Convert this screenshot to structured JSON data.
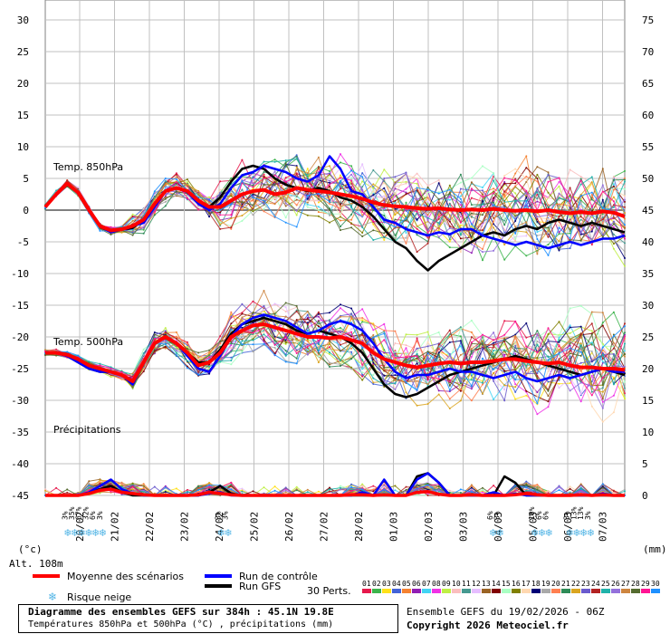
{
  "chart_data": {
    "type": "line",
    "title": "Diagramme des ensembles GEFS sur 384h : 45.1N 19.8E",
    "subtitle": "Températures 850hPa et 500hPa (°C) , précipitations (mm)",
    "run_info": "Ensemble GEFS du 19/02/2026 - 06Z",
    "copyright": "Copyright 2026 Meteociel.fr",
    "altitude_label": "Alt. 108m",
    "left_axis_unit": "(°c)",
    "right_axis_unit": "(mm)",
    "left_ticks": [
      "30",
      "25",
      "20",
      "15",
      "10",
      "5",
      "0",
      "-5",
      "-10",
      "-15",
      "-20",
      "-25",
      "-30",
      "-35",
      "-40",
      "-45"
    ],
    "right_ticks": [
      "75",
      "70",
      "65",
      "60",
      "55",
      "50",
      "45",
      "40",
      "35",
      "30",
      "25",
      "20",
      "15",
      "10",
      "5",
      "0"
    ],
    "x_ticks": [
      "20/02",
      "21/02",
      "22/02",
      "23/02",
      "24/02",
      "25/02",
      "26/02",
      "27/02",
      "28/02",
      "01/03",
      "02/03",
      "03/03",
      "04/03",
      "05/03",
      "06/03",
      "07/03"
    ],
    "section_labels": {
      "t850": "Temp. 850hPa",
      "t500": "Temp. 500hPa",
      "precip": "Précipitations"
    },
    "legend": {
      "mean": "Moyenne des scénarios",
      "control": "Run de contrôle",
      "gfs": "Run GFS",
      "snow": "Risque neige",
      "perts_label": "30 Perts.",
      "perts": [
        "01",
        "02",
        "03",
        "04",
        "05",
        "06",
        "07",
        "08",
        "09",
        "10",
        "11",
        "12",
        "13",
        "14",
        "15",
        "16",
        "17",
        "18",
        "19",
        "20",
        "21",
        "22",
        "23",
        "24",
        "25",
        "26",
        "27",
        "28",
        "29",
        "30"
      ]
    },
    "colors": {
      "mean": "#ff0000",
      "control": "#0000ff",
      "gfs": "#000000",
      "grid": "#c0c0c0",
      "zero_line": "#808080",
      "snow": "#55b6e6",
      "perts": [
        "#e6194b",
        "#3cb44b",
        "#ffe119",
        "#4363d8",
        "#f58231",
        "#911eb4",
        "#42d4f4",
        "#f032e6",
        "#bfef45",
        "#fabebe",
        "#469990",
        "#e6beff",
        "#9a6324",
        "#800000",
        "#aaffc3",
        "#808000",
        "#ffd8b1",
        "#000075",
        "#a9a9a9",
        "#ff7f50",
        "#2e8b57",
        "#daa520",
        "#6a5acd",
        "#b22222",
        "#20b2aa",
        "#9370db",
        "#cd853f",
        "#556b2f",
        "#ff1493",
        "#1e90ff"
      ]
    },
    "snow_risk": [
      {
        "day": 0.63,
        "text": "3%"
      },
      {
        "day": 0.83,
        "text": "35%"
      },
      {
        "day": 1.03,
        "text": "67%"
      },
      {
        "day": 1.23,
        "text": "32%"
      },
      {
        "day": 1.43,
        "text": "6%"
      },
      {
        "day": 1.63,
        "text": "3%"
      },
      {
        "day": 5.03,
        "text": "3%"
      },
      {
        "day": 5.23,
        "text": "3%"
      },
      {
        "day": 12.83,
        "text": "6%"
      },
      {
        "day": 13.03,
        "text": "3%"
      },
      {
        "day": 14.03,
        "text": "10%"
      },
      {
        "day": 14.23,
        "text": "6%"
      },
      {
        "day": 14.43,
        "text": "6%"
      },
      {
        "day": 15.03,
        "text": "3%"
      },
      {
        "day": 15.23,
        "text": "13%"
      },
      {
        "day": 15.43,
        "text": "13%"
      },
      {
        "day": 15.63,
        "text": "3%"
      }
    ],
    "series": {
      "mean_t850": [
        0.5,
        2.5,
        4.2,
        2.8,
        0.0,
        -2.5,
        -3.2,
        -3.0,
        -2.5,
        -1.5,
        1.0,
        3.0,
        3.5,
        3.0,
        1.5,
        0.5,
        0.5,
        1.5,
        2.5,
        3.0,
        3.2,
        2.5,
        2.8,
        3.5,
        3.2,
        3.0,
        2.8,
        2.5,
        2.2,
        1.8,
        1.2,
        0.8,
        0.6,
        0.5,
        0.3,
        0.2,
        0.3,
        0.1,
        0.0,
        0.1,
        0.0,
        0.2,
        0.0,
        -0.1,
        0.0,
        -0.2,
        0.0,
        -0.3,
        -0.5,
        -0.3,
        -0.5,
        -0.2,
        -0.4,
        -1.0
      ],
      "mean_t500": [
        -22.5,
        -22.5,
        -22.8,
        -23.5,
        -24.5,
        -25.0,
        -25.5,
        -26.0,
        -27.0,
        -24.0,
        -21.0,
        -20.0,
        -21.0,
        -22.5,
        -24.5,
        -24.0,
        -22.5,
        -20.0,
        -19.0,
        -18.2,
        -18.0,
        -18.5,
        -19.0,
        -19.5,
        -20.0,
        -20.0,
        -20.2,
        -20.0,
        -20.5,
        -21.0,
        -22.5,
        -23.5,
        -24.0,
        -24.5,
        -24.8,
        -24.5,
        -24.2,
        -24.0,
        -24.2,
        -24.0,
        -24.0,
        -23.8,
        -23.5,
        -23.5,
        -23.8,
        -24.0,
        -24.2,
        -24.0,
        -24.5,
        -24.8,
        -24.8,
        -25.0,
        -25.0,
        -25.2
      ],
      "control_t850": [
        0.5,
        2.5,
        4.2,
        2.8,
        0.0,
        -2.5,
        -3.5,
        -3.0,
        -2.5,
        -2.0,
        0.5,
        3.0,
        3.5,
        2.8,
        1.0,
        0.0,
        1.0,
        3.5,
        5.5,
        6.0,
        7.0,
        6.5,
        6.0,
        5.0,
        4.5,
        5.5,
        8.5,
        6.5,
        3.0,
        2.5,
        0.5,
        -1.5,
        -2.0,
        -3.0,
        -3.5,
        -4.0,
        -3.5,
        -3.8,
        -3.0,
        -3.0,
        -4.0,
        -4.5,
        -5.0,
        -5.5,
        -5.0,
        -5.5,
        -6.0,
        -5.5,
        -5.0,
        -5.5,
        -5.0,
        -4.5,
        -4.5,
        -4.0
      ],
      "gfs_t850": [
        0.5,
        2.5,
        4.2,
        2.8,
        0.0,
        -2.5,
        -3.5,
        -3.0,
        -2.8,
        -1.5,
        1.0,
        3.0,
        3.5,
        3.0,
        1.5,
        0.5,
        2.0,
        4.5,
        6.5,
        7.0,
        6.5,
        5.0,
        4.0,
        3.5,
        3.0,
        3.5,
        3.0,
        2.0,
        1.5,
        0.5,
        -1.0,
        -3.0,
        -5.0,
        -6.0,
        -8.0,
        -9.5,
        -8.0,
        -7.0,
        -6.0,
        -5.0,
        -4.0,
        -3.5,
        -4.0,
        -3.0,
        -2.5,
        -3.0,
        -2.0,
        -1.5,
        -2.0,
        -2.5,
        -2.0,
        -2.5,
        -3.0,
        -3.5
      ],
      "control_t500": [
        -22.5,
        -22.5,
        -23.0,
        -24.0,
        -25.0,
        -25.5,
        -25.5,
        -26.0,
        -27.5,
        -24.0,
        -21.0,
        -20.0,
        -21.0,
        -23.0,
        -25.0,
        -25.5,
        -23.0,
        -20.0,
        -18.0,
        -17.0,
        -16.5,
        -17.0,
        -17.5,
        -18.5,
        -19.5,
        -19.0,
        -18.0,
        -17.5,
        -18.0,
        -19.0,
        -21.0,
        -23.5,
        -25.5,
        -26.5,
        -26.0,
        -26.0,
        -25.5,
        -25.0,
        -25.5,
        -25.5,
        -26.0,
        -26.5,
        -26.0,
        -25.5,
        -26.5,
        -27.0,
        -26.5,
        -26.0,
        -26.5,
        -26.0,
        -25.5,
        -25.0,
        -25.5,
        -25.5
      ],
      "gfs_t500": [
        -22.5,
        -22.5,
        -23.0,
        -24.0,
        -25.0,
        -25.5,
        -25.5,
        -26.0,
        -27.0,
        -24.0,
        -21.0,
        -20.0,
        -21.0,
        -22.5,
        -24.0,
        -24.0,
        -22.0,
        -19.5,
        -18.0,
        -17.5,
        -17.0,
        -17.5,
        -18.0,
        -19.0,
        -19.5,
        -19.0,
        -19.5,
        -20.0,
        -21.0,
        -22.5,
        -25.0,
        -27.5,
        -29.0,
        -29.5,
        -29.0,
        -28.0,
        -27.0,
        -26.0,
        -25.5,
        -25.0,
        -24.5,
        -24.0,
        -23.5,
        -23.0,
        -23.5,
        -24.0,
        -24.5,
        -25.0,
        -25.5,
        -26.0,
        -25.5,
        -25.0,
        -25.5,
        -26.0
      ],
      "mean_precip": [
        0,
        0,
        0,
        0,
        0.3,
        0.8,
        1.0,
        0.5,
        0.3,
        0.1,
        0,
        0,
        0,
        0,
        0.1,
        0.5,
        0.3,
        0.1,
        0,
        0,
        0,
        0,
        0,
        0,
        0,
        0,
        0,
        0,
        0.1,
        0.1,
        0,
        0.1,
        0,
        0,
        0.5,
        0.6,
        0.2,
        0,
        0,
        0.1,
        0,
        0,
        0,
        0.1,
        0.3,
        0.1,
        0,
        0,
        0,
        0.1,
        0,
        0.1,
        0,
        0
      ],
      "control_precip": [
        0,
        0,
        0,
        0,
        0.5,
        1.5,
        2.5,
        1.0,
        0.3,
        0,
        0,
        0,
        0,
        0,
        0,
        0.3,
        0.5,
        0,
        0,
        0,
        0,
        0,
        0,
        0,
        0,
        0,
        0,
        0,
        0,
        0.5,
        0,
        2.5,
        0,
        0,
        2.5,
        3.5,
        2.0,
        0,
        0,
        0,
        0,
        0.5,
        0,
        0.3,
        0,
        0,
        0,
        0,
        0,
        0,
        0,
        0.3,
        0,
        0
      ],
      "gfs_precip": [
        0,
        0,
        0,
        0,
        0.3,
        1.0,
        1.5,
        0.5,
        0,
        0,
        0,
        0,
        0,
        0,
        0,
        0.5,
        1.5,
        0.3,
        0,
        0,
        0,
        0,
        0,
        0,
        0,
        0,
        0,
        0,
        0,
        0,
        0,
        0,
        0,
        0,
        3.0,
        3.5,
        2.0,
        0,
        0,
        0,
        0,
        0,
        3.0,
        2.0,
        0,
        0,
        0,
        0,
        0,
        0,
        0,
        0,
        0,
        0
      ]
    }
  }
}
